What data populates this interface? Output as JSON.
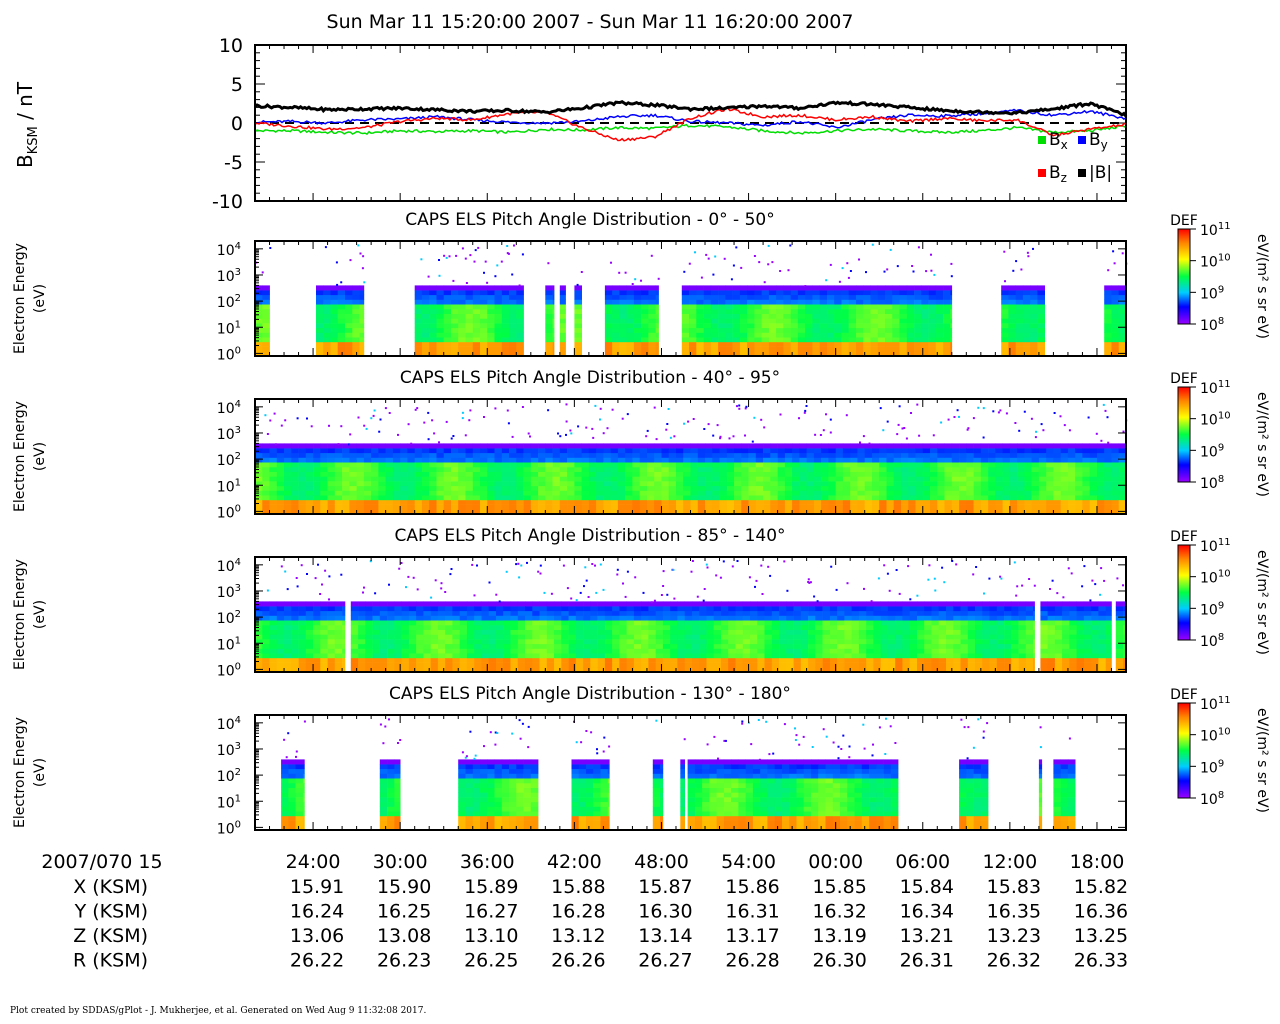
{
  "header": {
    "title": "Sun Mar 11 15:20:00 2007 - Sun Mar 11 16:20:00 2007"
  },
  "footer": {
    "text": "Plot created by SDDAS/gPlot - J. Mukherjee, et al.  Generated on Wed Aug 9 11:32:08 2017."
  },
  "chart_data": [
    {
      "type": "line",
      "ylabel_main": "B",
      "ylabel_sub": "KSM",
      "ylabel_unit": " / nT",
      "ylim": [
        -10,
        10
      ],
      "yticks": [
        "10",
        "5",
        "0",
        "-5",
        "-10"
      ],
      "reference_line": 0,
      "x": [
        0,
        2.5,
        5,
        7.5,
        10,
        12.5,
        15,
        17.5,
        20,
        22.5,
        25,
        27.5,
        30,
        32.5,
        35,
        37.5,
        40,
        42.5,
        45,
        47.5,
        50,
        52.5,
        55,
        57.5,
        60
      ],
      "series": [
        {
          "name": "x",
          "color": "#00dd00",
          "values": [
            -1.0,
            -1.0,
            -1.2,
            -1.3,
            -1.0,
            -1.1,
            -1.0,
            -1.2,
            -0.8,
            -0.9,
            -0.6,
            -0.7,
            -0.3,
            -0.5,
            -1.0,
            -1.3,
            -1.0,
            -0.8,
            -1.0,
            -1.2,
            -1.0,
            -0.6,
            -1.2,
            -1.0,
            -0.4
          ]
        },
        {
          "name": "y",
          "color": "#0000ff",
          "values": [
            0.1,
            0.2,
            0.0,
            0.4,
            0.5,
            0.8,
            0.4,
            0.1,
            0.0,
            0.2,
            0.8,
            1.0,
            0.2,
            0.0,
            -0.3,
            0.2,
            -0.6,
            0.4,
            1.0,
            0.9,
            1.2,
            1.6,
            1.0,
            1.5,
            0.6
          ]
        },
        {
          "name": "z",
          "color": "#ff0000",
          "values": [
            0.0,
            -0.4,
            -0.8,
            -0.6,
            0.2,
            0.6,
            0.4,
            1.2,
            1.4,
            -0.6,
            -2.2,
            -1.8,
            0.6,
            1.8,
            0.8,
            1.0,
            0.4,
            0.8,
            0.2,
            0.6,
            0.3,
            0.4,
            -1.6,
            -0.8,
            -0.2
          ]
        },
        {
          "name": "|B|",
          "color": "#000000",
          "values": [
            2.2,
            2.0,
            1.7,
            1.8,
            1.9,
            1.7,
            1.5,
            1.6,
            1.4,
            1.9,
            2.6,
            2.3,
            1.8,
            1.9,
            2.2,
            1.9,
            2.6,
            2.4,
            2.0,
            1.6,
            1.4,
            1.3,
            1.8,
            2.5,
            1.0
          ]
        }
      ],
      "legend": {
        "placement": "bottom-right",
        "b_letter": "B",
        "abs_label": "|B|"
      }
    },
    {
      "type": "heatmap",
      "title": "CAPS ELS Pitch Angle Distribution - 0° - 50°",
      "ylabel": [
        "Electron Energy",
        "(eV)"
      ],
      "ylim_log10_eV": [
        -0.1,
        4.3
      ],
      "coverage_minutes": [
        [
          0,
          1.0
        ],
        [
          4.2,
          7.5
        ],
        [
          11.0,
          18.5
        ],
        [
          20.0,
          20.6
        ],
        [
          21.0,
          21.4
        ],
        [
          22.0,
          22.5
        ],
        [
          24.1,
          27.8
        ],
        [
          29.4,
          48.0
        ],
        [
          51.4,
          54.4
        ],
        [
          58.5,
          60.0
        ]
      ],
      "colorbar": {
        "label": "DEF",
        "units": "eV/(m² s sr eV)",
        "range_log10": [
          8,
          11
        ],
        "ticks": [
          "11",
          "10",
          "9",
          "8"
        ]
      }
    },
    {
      "type": "heatmap",
      "title": "CAPS ELS Pitch Angle Distribution - 40° - 95°",
      "ylabel": [
        "Electron Energy",
        "(eV)"
      ],
      "ylim_log10_eV": [
        -0.1,
        4.3
      ],
      "coverage_minutes": [
        [
          0,
          60.0
        ]
      ],
      "colorbar": {
        "label": "DEF",
        "units": "eV/(m² s sr eV)",
        "range_log10": [
          8,
          11
        ],
        "ticks": [
          "11",
          "10",
          "9",
          "8"
        ]
      }
    },
    {
      "type": "heatmap",
      "title": "CAPS ELS Pitch Angle Distribution - 85° - 140°",
      "ylabel": [
        "Electron Energy",
        "(eV)"
      ],
      "ylim_log10_eV": [
        -0.1,
        4.3
      ],
      "coverage_minutes": [
        [
          0,
          6.2
        ],
        [
          6.6,
          53.7
        ],
        [
          54.1,
          59.0
        ],
        [
          59.3,
          60.0
        ]
      ],
      "colorbar": {
        "label": "DEF",
        "units": "eV/(m² s sr eV)",
        "range_log10": [
          8,
          11
        ],
        "ticks": [
          "11",
          "10",
          "9",
          "8"
        ]
      }
    },
    {
      "type": "heatmap",
      "title": "CAPS ELS Pitch Angle Distribution - 130° - 180°",
      "ylabel": [
        "Electron Energy",
        "(eV)"
      ],
      "ylim_log10_eV": [
        -0.1,
        4.3
      ],
      "coverage_minutes": [
        [
          1.8,
          3.4
        ],
        [
          8.6,
          10.0
        ],
        [
          14.0,
          19.5
        ],
        [
          21.8,
          24.4
        ],
        [
          27.4,
          28.1
        ],
        [
          29.3,
          29.6
        ],
        [
          29.8,
          44.3
        ],
        [
          48.5,
          50.5
        ],
        [
          54.0,
          54.2
        ],
        [
          55.0,
          56.5
        ]
      ],
      "colorbar": {
        "label": "DEF",
        "units": "eV/(m² s sr eV)",
        "range_log10": [
          8,
          11
        ],
        "ticks": [
          "11",
          "10",
          "9",
          "8"
        ]
      }
    }
  ],
  "time_axis": {
    "xlim_minutes": [
      0,
      60
    ],
    "tick_minutes": [
      4,
      10,
      16,
      22,
      28,
      34,
      40,
      46,
      52,
      58
    ],
    "date_label": "2007/070 15",
    "tick_labels": [
      "24:00",
      "30:00",
      "36:00",
      "42:00",
      "48:00",
      "54:00",
      "00:00",
      "06:00",
      "12:00",
      "18:00"
    ]
  },
  "ephemeris": [
    {
      "label": "X (KSM)",
      "values": [
        "15.91",
        "15.90",
        "15.89",
        "15.88",
        "15.87",
        "15.86",
        "15.85",
        "15.84",
        "15.83",
        "15.82"
      ]
    },
    {
      "label": "Y (KSM)",
      "values": [
        "16.24",
        "16.25",
        "16.27",
        "16.28",
        "16.30",
        "16.31",
        "16.32",
        "16.34",
        "16.35",
        "16.36"
      ]
    },
    {
      "label": "Z (KSM)",
      "values": [
        "13.06",
        "13.08",
        "13.10",
        "13.12",
        "13.14",
        "13.17",
        "13.19",
        "13.21",
        "13.23",
        "13.25"
      ]
    },
    {
      "label": "R (KSM)",
      "values": [
        "26.22",
        "26.23",
        "26.25",
        "26.26",
        "26.27",
        "26.28",
        "26.30",
        "26.31",
        "26.32",
        "26.33"
      ]
    }
  ],
  "energy_ticks": {
    "base": "10",
    "exponents": [
      "4",
      "3",
      "2",
      "1",
      "0"
    ],
    "values_log10": [
      4,
      3,
      2,
      1,
      0
    ]
  }
}
